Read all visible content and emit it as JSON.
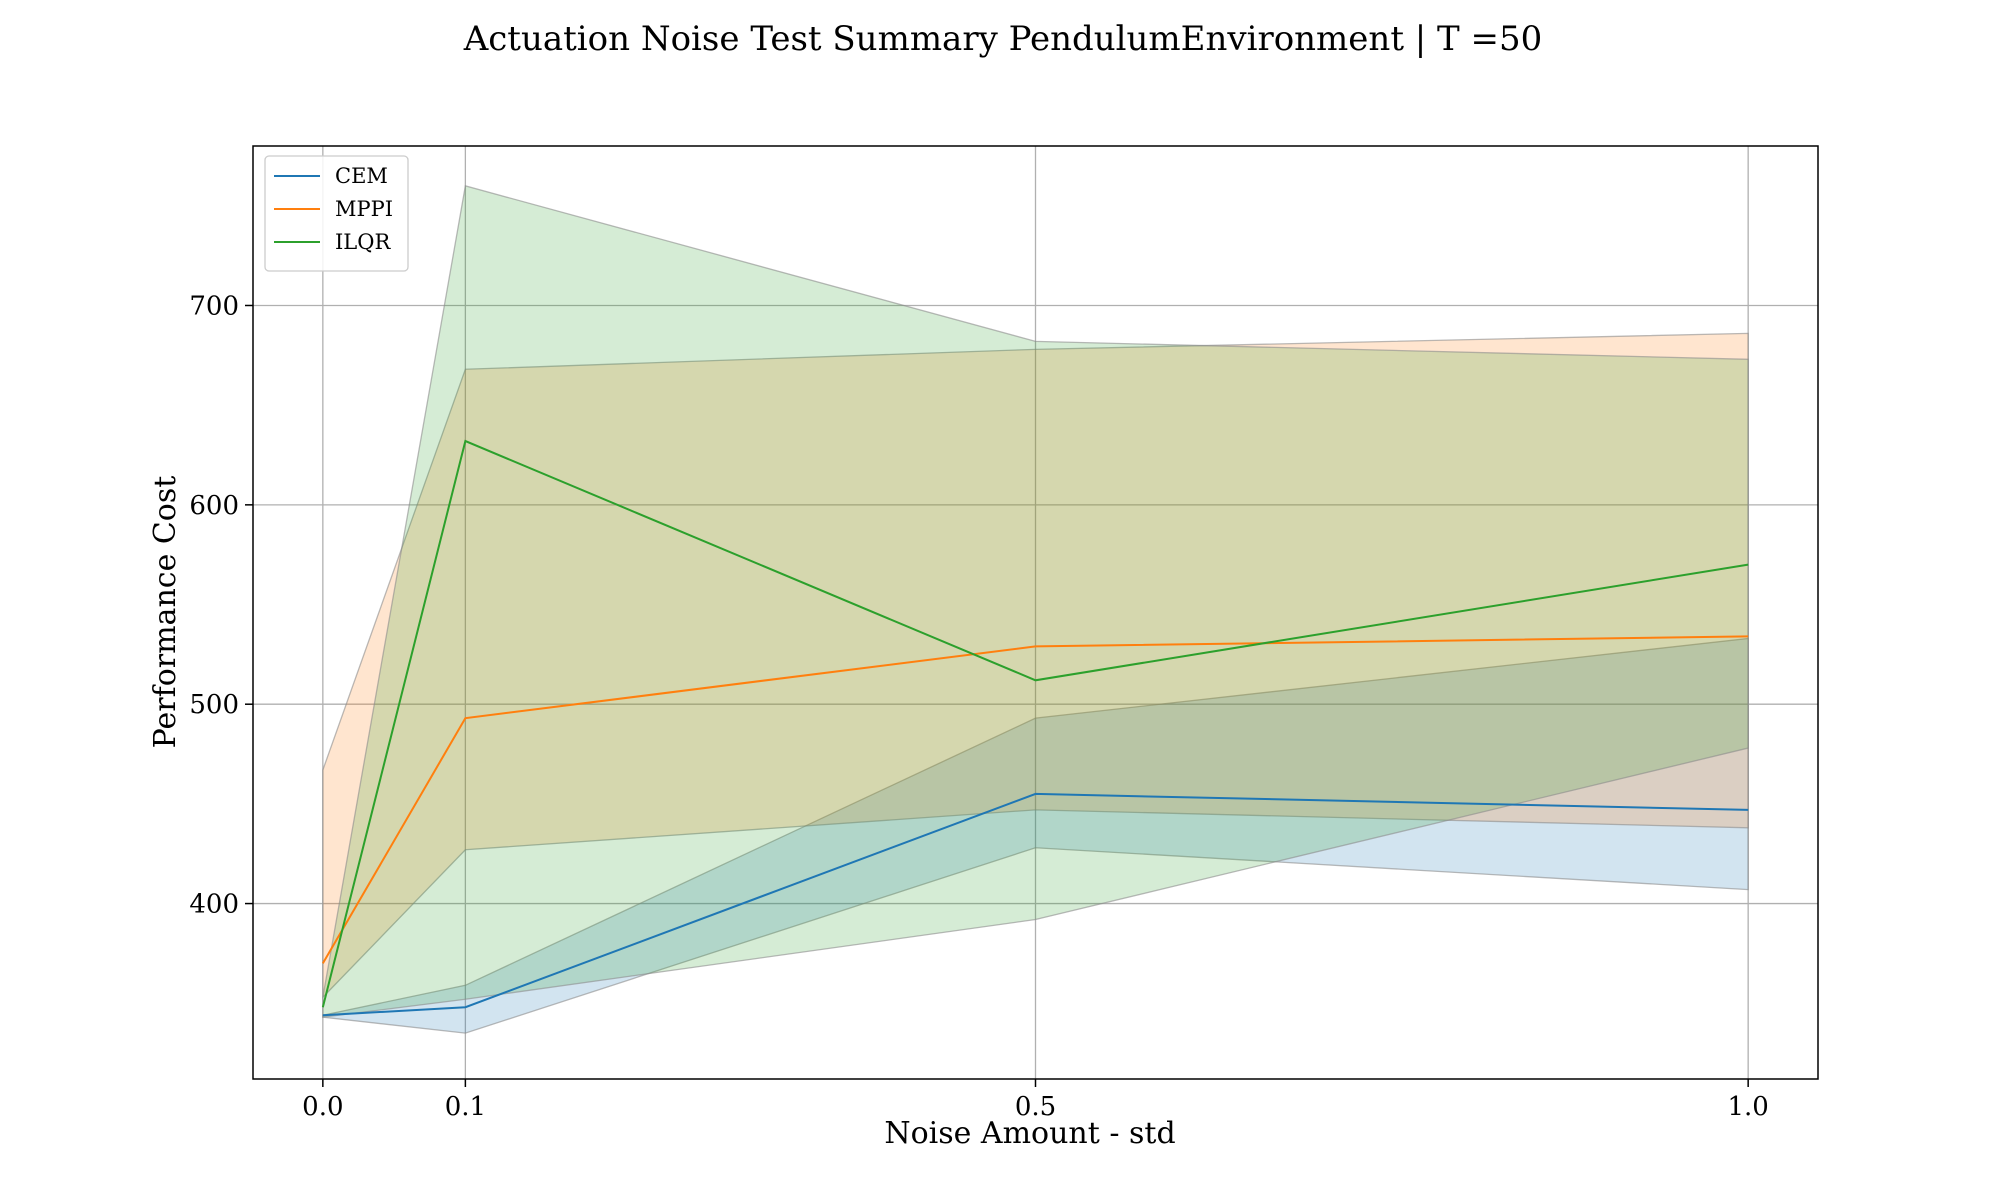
{
  "chart_data": {
    "type": "line",
    "title": "Actuation Noise Test Summary PendulumEnvironment | T =50",
    "xlabel": "Noise Amount - std",
    "ylabel": "Performance Cost",
    "x": [
      0.0,
      0.1,
      0.5,
      1.0
    ],
    "x_tick_labels": [
      "0.0",
      "0.1",
      "0.5",
      "1.0"
    ],
    "y_ticks": [
      400,
      500,
      600,
      700
    ],
    "y_tick_labels": [
      "400",
      "500",
      "600",
      "700"
    ],
    "xlim": [
      -0.049,
      1.049
    ],
    "ylim": [
      312,
      780
    ],
    "grid": true,
    "legend_position": "upper left",
    "series": [
      {
        "name": "CEM",
        "color": "#1f77b4",
        "values": [
          344,
          348,
          455,
          447
        ],
        "lower": [
          343,
          335,
          428,
          407
        ],
        "upper": [
          344,
          359,
          493,
          533
        ]
      },
      {
        "name": "MPPI",
        "color": "#ff7f0e",
        "values": [
          370,
          493,
          529,
          534
        ],
        "lower": [
          353,
          427,
          447,
          438
        ],
        "upper": [
          467,
          668,
          678,
          686
        ]
      },
      {
        "name": "ILQR",
        "color": "#2ca02c",
        "values": [
          348,
          632,
          512,
          570
        ],
        "lower": [
          343,
          352,
          392,
          478
        ],
        "upper": [
          353,
          760,
          682,
          673
        ]
      }
    ]
  }
}
